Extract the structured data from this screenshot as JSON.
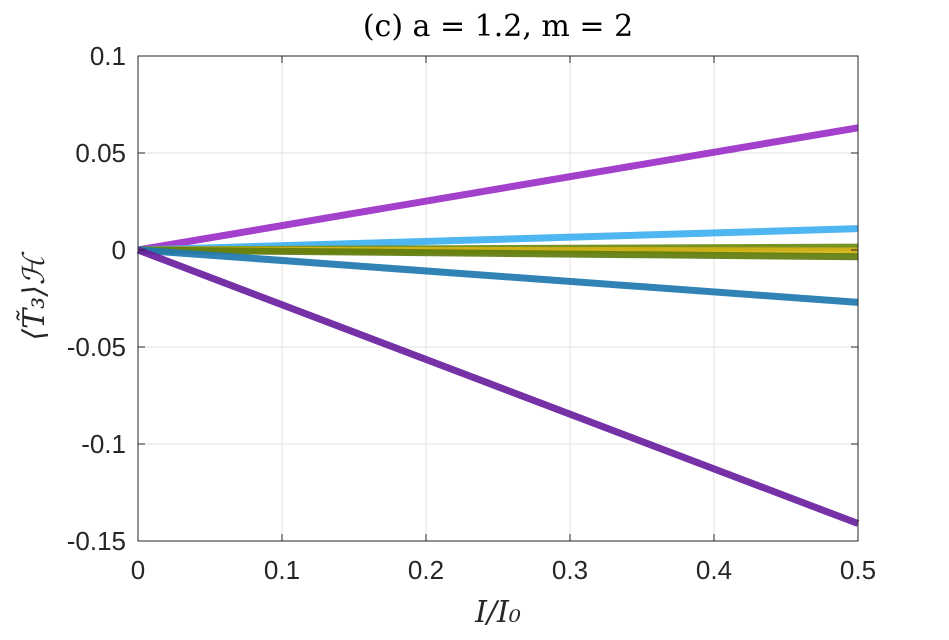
{
  "chart_data": {
    "type": "line",
    "title": "(c) a = 1.2, m = 2",
    "xlabel": "I/I₀",
    "ylabel": "⟨T̃₃⟩ℋ",
    "xlim": [
      0,
      0.5
    ],
    "ylim": [
      -0.15,
      0.1
    ],
    "x_ticks": [
      "0",
      "0.1",
      "0.2",
      "0.3",
      "0.4",
      "0.5"
    ],
    "y_ticks": [
      "0.1",
      "0.05",
      "0",
      "-0.05",
      "-0.1",
      "-0.15"
    ],
    "grid": true,
    "legend": "none",
    "series": [
      {
        "x": [
          0,
          0.5
        ],
        "y": [
          0,
          0.063
        ],
        "color": "#9b30c8"
      },
      {
        "x": [
          0,
          0.5
        ],
        "y": [
          0,
          0.011
        ],
        "color": "#3fb0f0"
      },
      {
        "x": [
          0,
          0.5
        ],
        "y": [
          0,
          0.0015
        ],
        "color": "#6b8a12"
      },
      {
        "x": [
          0,
          0.5
        ],
        "y": [
          0,
          -0.0005
        ],
        "color": "#d4b216"
      },
      {
        "x": [
          0,
          0.5
        ],
        "y": [
          0,
          -0.0035
        ],
        "color": "#5f7d0e"
      },
      {
        "x": [
          0,
          0.5
        ],
        "y": [
          0,
          -0.027
        ],
        "color": "#1f78b0"
      },
      {
        "x": [
          0,
          0.5
        ],
        "y": [
          0,
          -0.141
        ],
        "color": "#6a1fa0"
      }
    ]
  }
}
